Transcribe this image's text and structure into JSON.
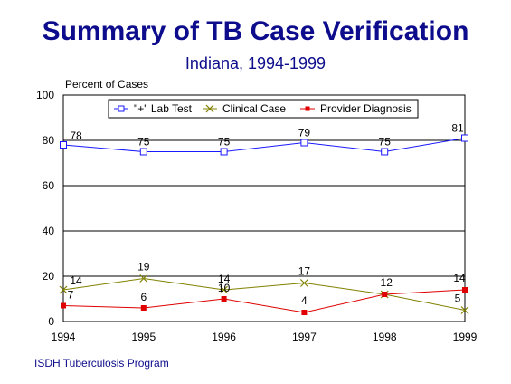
{
  "page": {
    "title": "Summary of TB Case Verification",
    "subtitle": "Indiana, 1994-1999",
    "footer": "ISDH Tuberculosis Program"
  },
  "chart_data": {
    "type": "line",
    "ylabel": "Percent of Cases",
    "xlabel": "",
    "ylim": [
      0,
      100
    ],
    "yticks": [
      0,
      20,
      40,
      60,
      80,
      100
    ],
    "categories": [
      "1994",
      "1995",
      "1996",
      "1997",
      "1998",
      "1999"
    ],
    "grid": "horizontal",
    "legend_position": "top",
    "series": [
      {
        "name": "\"+\" Lab Test",
        "values": [
          78,
          75,
          75,
          79,
          75,
          81
        ],
        "color": "#1a1aff",
        "marker": "open-square"
      },
      {
        "name": "Clinical Case",
        "values": [
          14,
          19,
          14,
          17,
          12,
          5
        ],
        "color": "#808000",
        "marker": "x"
      },
      {
        "name": "Provider Diagnosis",
        "values": [
          7,
          6,
          10,
          4,
          12,
          14
        ],
        "color": "#e00000",
        "marker": "filled-square"
      }
    ],
    "data_labels": [
      [
        "78",
        "75",
        "75",
        "79",
        "75",
        "81"
      ],
      [
        "14",
        "19",
        "14",
        "17",
        "",
        "5"
      ],
      [
        "7",
        "6",
        "10",
        "4",
        "12",
        "14"
      ]
    ]
  }
}
